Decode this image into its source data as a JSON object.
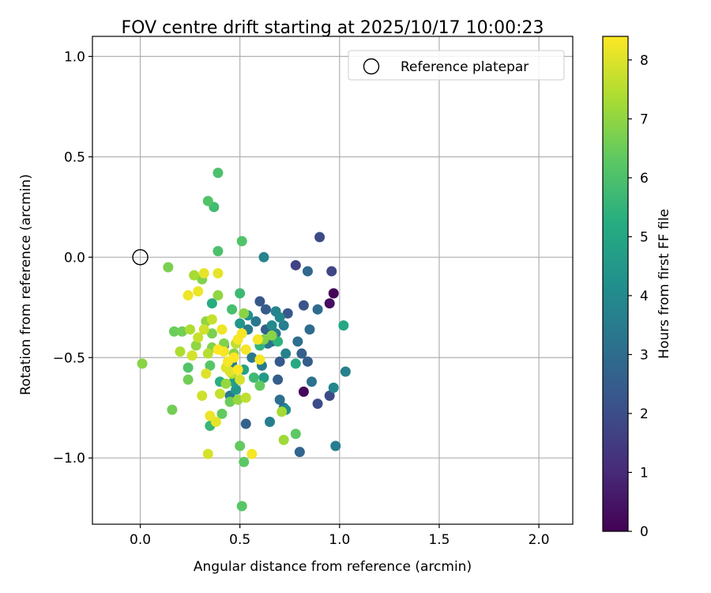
{
  "chart_data": {
    "type": "scatter",
    "title": "FOV centre drift starting at 2025/10/17 10:00:23",
    "xlabel": "Angular distance from reference (arcmin)",
    "ylabel": "Rotation from reference (arcmin)",
    "xlim": [
      -0.24,
      2.17
    ],
    "ylim": [
      -1.33,
      1.1
    ],
    "grid": true,
    "x_ticks": [
      0.0,
      0.5,
      1.0,
      1.5,
      2.0
    ],
    "x_tick_labels": [
      "0.0",
      "0.5",
      "1.0",
      "1.5",
      "2.0"
    ],
    "y_ticks": [
      1.0,
      0.5,
      0.0,
      -0.5,
      -1.0
    ],
    "y_tick_labels": [
      "1.0",
      "0.5",
      "0.0",
      "−0.5",
      "−1.0"
    ],
    "legend": {
      "label": "Reference platepar",
      "position": "top-right"
    },
    "reference_point": {
      "x": 0.0,
      "y": 0.0
    },
    "colorbar": {
      "label": "Hours from first FF file",
      "range": [
        0,
        8.4
      ],
      "ticks": [
        0,
        1,
        2,
        3,
        4,
        5,
        6,
        7,
        8
      ],
      "tick_labels": [
        "0",
        "1",
        "2",
        "3",
        "4",
        "5",
        "6",
        "7",
        "8"
      ],
      "colormap": "viridis"
    },
    "points": [
      [
        0.97,
        -0.18,
        0.1
      ],
      [
        0.95,
        -0.23,
        0.3
      ],
      [
        0.82,
        -0.67,
        0.2
      ],
      [
        0.9,
        0.1,
        1.9
      ],
      [
        0.96,
        -0.07,
        1.8
      ],
      [
        0.78,
        -0.04,
        1.7
      ],
      [
        0.95,
        -0.69,
        1.9
      ],
      [
        0.89,
        -0.73,
        2.0
      ],
      [
        0.82,
        -0.24,
        2.2
      ],
      [
        0.74,
        -0.28,
        2.3
      ],
      [
        0.6,
        -0.22,
        2.3
      ],
      [
        0.63,
        -0.26,
        2.5
      ],
      [
        0.7,
        -0.52,
        2.4
      ],
      [
        0.66,
        -0.42,
        2.2
      ],
      [
        0.69,
        -0.61,
        2.5
      ],
      [
        0.81,
        -0.48,
        2.6
      ],
      [
        0.84,
        -0.52,
        2.5
      ],
      [
        0.53,
        -0.83,
        2.6
      ],
      [
        0.63,
        -0.36,
        2.6
      ],
      [
        0.8,
        -0.97,
        2.8
      ],
      [
        0.84,
        -0.07,
        2.9
      ],
      [
        0.89,
        -0.26,
        3.0
      ],
      [
        0.85,
        -0.36,
        3.0
      ],
      [
        0.79,
        -0.42,
        3.1
      ],
      [
        0.86,
        -0.62,
        3.2
      ],
      [
        0.72,
        -0.75,
        3.3
      ],
      [
        0.7,
        -0.71,
        3.1
      ],
      [
        0.58,
        -0.32,
        3.4
      ],
      [
        0.54,
        -0.36,
        3.5
      ],
      [
        0.64,
        -0.43,
        3.3
      ],
      [
        0.68,
        -0.38,
        3.4
      ],
      [
        0.72,
        -0.34,
        3.6
      ],
      [
        0.68,
        -0.27,
        3.8
      ],
      [
        0.7,
        -0.3,
        3.9
      ],
      [
        0.73,
        -0.48,
        3.7
      ],
      [
        0.61,
        -0.54,
        3.5
      ],
      [
        0.56,
        -0.5,
        3.4
      ],
      [
        0.46,
        -0.53,
        3.6
      ],
      [
        0.42,
        -0.44,
        3.3
      ],
      [
        0.45,
        -0.69,
        3.5
      ],
      [
        0.65,
        -0.82,
        3.6
      ],
      [
        0.98,
        -0.94,
        3.6
      ],
      [
        1.03,
        -0.57,
        3.7
      ],
      [
        0.62,
        0.0,
        3.8
      ],
      [
        0.97,
        -0.65,
        3.9
      ],
      [
        0.66,
        -0.34,
        4.0
      ],
      [
        0.73,
        -0.76,
        4.1
      ],
      [
        0.54,
        -0.29,
        4.2
      ],
      [
        0.5,
        -0.33,
        4.4
      ],
      [
        0.48,
        -0.66,
        4.5
      ],
      [
        0.62,
        -0.6,
        4.6
      ],
      [
        0.47,
        -0.62,
        4.7
      ],
      [
        0.52,
        -0.56,
        4.8
      ],
      [
        1.02,
        -0.34,
        5.0
      ],
      [
        0.78,
        -0.53,
        5.1
      ],
      [
        0.36,
        -0.23,
        5.2
      ],
      [
        0.4,
        -0.62,
        5.3
      ],
      [
        0.69,
        -0.42,
        5.4
      ],
      [
        0.6,
        -0.44,
        5.5
      ],
      [
        0.35,
        -0.84,
        5.6
      ],
      [
        0.37,
        0.25,
        5.8
      ],
      [
        0.5,
        -0.18,
        5.7
      ],
      [
        0.57,
        -0.6,
        5.7
      ],
      [
        0.46,
        -0.26,
        5.9
      ],
      [
        0.39,
        0.03,
        6.0
      ],
      [
        0.39,
        0.42,
        6.0
      ],
      [
        0.34,
        0.28,
        6.1
      ],
      [
        0.51,
        0.08,
        6.1
      ],
      [
        0.24,
        -0.55,
        6.1
      ],
      [
        0.26,
        -0.49,
        6.2
      ],
      [
        0.35,
        -0.54,
        6.2
      ],
      [
        0.78,
        -0.88,
        6.3
      ],
      [
        0.52,
        -1.02,
        6.3
      ],
      [
        0.51,
        -1.24,
        6.2
      ],
      [
        0.5,
        -0.94,
        6.4
      ],
      [
        0.6,
        -0.64,
        6.4
      ],
      [
        0.41,
        -0.78,
        6.4
      ],
      [
        0.45,
        -0.72,
        6.5
      ],
      [
        0.17,
        -0.37,
        6.5
      ],
      [
        0.21,
        -0.37,
        6.6
      ],
      [
        0.16,
        -0.76,
        6.6
      ],
      [
        0.24,
        -0.61,
        6.6
      ],
      [
        0.36,
        -0.38,
        6.7
      ],
      [
        0.14,
        -0.05,
        6.7
      ],
      [
        0.31,
        -0.11,
        6.8
      ],
      [
        0.36,
        -0.45,
        6.8
      ],
      [
        0.42,
        -0.43,
        6.8
      ],
      [
        0.62,
        -0.41,
        6.8
      ],
      [
        0.66,
        -0.39,
        6.9
      ],
      [
        0.47,
        -0.48,
        6.9
      ],
      [
        0.52,
        -0.28,
        6.9
      ],
      [
        0.01,
        -0.53,
        6.9
      ],
      [
        0.28,
        -0.44,
        7.0
      ],
      [
        0.39,
        -0.19,
        7.0
      ],
      [
        0.33,
        -0.32,
        7.0
      ],
      [
        0.43,
        -0.63,
        7.1
      ],
      [
        0.49,
        -0.71,
        7.1
      ],
      [
        0.72,
        -0.91,
        7.2
      ],
      [
        0.71,
        -0.77,
        7.3
      ],
      [
        0.27,
        -0.09,
        7.3
      ],
      [
        0.2,
        -0.47,
        7.4
      ],
      [
        0.25,
        -0.36,
        7.4
      ],
      [
        0.34,
        -0.48,
        7.5
      ],
      [
        0.46,
        -0.58,
        7.5
      ],
      [
        0.48,
        -0.43,
        7.6
      ],
      [
        0.53,
        -0.7,
        7.6
      ],
      [
        0.4,
        -0.68,
        7.7
      ],
      [
        0.36,
        -0.31,
        7.7
      ],
      [
        0.29,
        -0.4,
        7.7
      ],
      [
        0.32,
        -0.36,
        7.8
      ],
      [
        0.31,
        -0.69,
        7.8
      ],
      [
        0.5,
        -0.61,
        7.9
      ],
      [
        0.34,
        -0.98,
        7.9
      ],
      [
        0.26,
        -0.49,
        7.9
      ],
      [
        0.33,
        -0.58,
        8.0
      ],
      [
        0.43,
        -0.55,
        8.0
      ],
      [
        0.45,
        -0.57,
        8.0
      ],
      [
        0.38,
        -0.82,
        8.1
      ],
      [
        0.39,
        -0.08,
        8.1
      ],
      [
        0.32,
        -0.08,
        8.1
      ],
      [
        0.29,
        -0.17,
        8.2
      ],
      [
        0.24,
        -0.19,
        8.2
      ],
      [
        0.35,
        -0.79,
        8.2
      ],
      [
        0.41,
        -0.36,
        8.2
      ],
      [
        0.42,
        -0.47,
        8.3
      ],
      [
        0.44,
        -0.52,
        8.3
      ],
      [
        0.49,
        -0.41,
        8.3
      ],
      [
        0.51,
        -0.38,
        8.3
      ],
      [
        0.53,
        -0.46,
        8.3
      ],
      [
        0.6,
        -0.51,
        8.3
      ],
      [
        0.56,
        -0.98,
        8.3
      ],
      [
        0.59,
        -0.41,
        8.3
      ],
      [
        0.39,
        -0.46,
        8.4
      ],
      [
        0.47,
        -0.5,
        8.4
      ],
      [
        0.49,
        -0.56,
        8.4
      ]
    ]
  }
}
